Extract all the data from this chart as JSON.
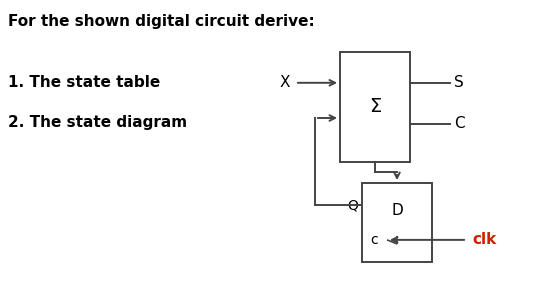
{
  "title": "For the shown digital circuit derive:",
  "item1": "1. The state table",
  "item2": "2. The state diagram",
  "bg_color": "#ffffff",
  "text_color": "#000000",
  "clk_color": "#cc2200",
  "title_fontsize": 11,
  "body_fontsize": 11,
  "sigma_label": "Σ",
  "dff_d_label": "D",
  "dff_c_label": "c",
  "clk_label": "clk",
  "x_label": "X",
  "s_label": "S",
  "c_label": "C",
  "q_label": "Q"
}
